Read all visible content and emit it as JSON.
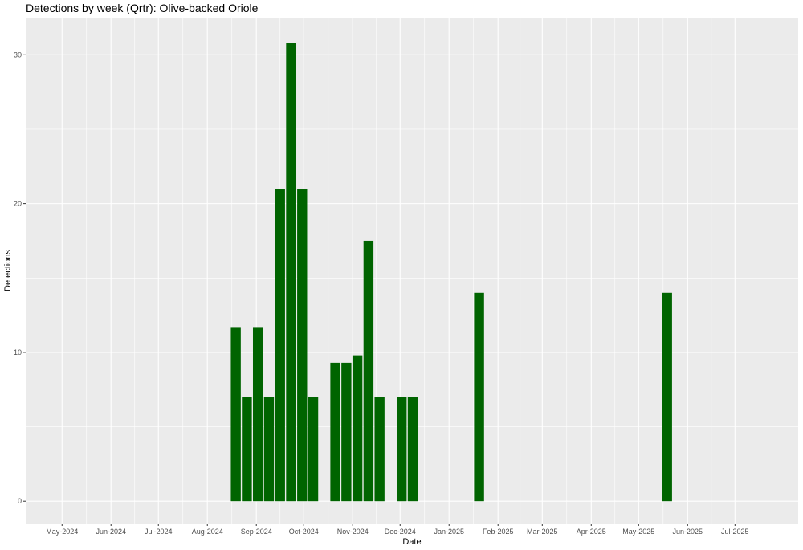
{
  "chart_data": {
    "type": "bar",
    "title": "Detections by week (Qrtr): Olive-backed Oriole",
    "xlabel": "Date",
    "ylabel": "Detections",
    "x_axis": {
      "type": "date",
      "range": [
        "2024-04-08",
        "2025-08-10"
      ],
      "tick_dates": [
        "2024-05-01",
        "2024-06-01",
        "2024-07-01",
        "2024-08-01",
        "2024-09-01",
        "2024-10-01",
        "2024-11-01",
        "2024-12-01",
        "2025-01-01",
        "2025-02-01",
        "2025-03-01",
        "2025-04-01",
        "2025-05-01",
        "2025-06-01",
        "2025-07-01"
      ],
      "tick_labels": [
        "May-2024",
        "Jun-2024",
        "Jul-2024",
        "Aug-2024",
        "Sep-2024",
        "Oct-2024",
        "Nov-2024",
        "Dec-2024",
        "Jan-2025",
        "Feb-2025",
        "Mar-2025",
        "Apr-2025",
        "May-2025",
        "Jun-2025",
        "Jul-2025"
      ]
    },
    "y_axis": {
      "range": [
        -1.5,
        32.5
      ],
      "ticks": [
        0,
        10,
        20,
        30
      ],
      "tick_labels": [
        "0",
        "10",
        "20",
        "30"
      ]
    },
    "grid": true,
    "bar_color": "#006400",
    "background_color": "#ebebeb",
    "points": [
      {
        "date": "2024-08-19",
        "value": 11.7
      },
      {
        "date": "2024-08-26",
        "value": 7
      },
      {
        "date": "2024-09-02",
        "value": 11.7
      },
      {
        "date": "2024-09-09",
        "value": 7
      },
      {
        "date": "2024-09-16",
        "value": 21
      },
      {
        "date": "2024-09-23",
        "value": 30.8
      },
      {
        "date": "2024-09-30",
        "value": 21
      },
      {
        "date": "2024-10-07",
        "value": 7
      },
      {
        "date": "2024-10-21",
        "value": 9.3
      },
      {
        "date": "2024-10-28",
        "value": 9.3
      },
      {
        "date": "2024-11-04",
        "value": 9.8
      },
      {
        "date": "2024-11-11",
        "value": 17.5
      },
      {
        "date": "2024-11-18",
        "value": 7
      },
      {
        "date": "2024-12-02",
        "value": 7
      },
      {
        "date": "2024-12-09",
        "value": 7
      },
      {
        "date": "2025-01-20",
        "value": 14
      },
      {
        "date": "2025-05-19",
        "value": 14
      }
    ]
  }
}
